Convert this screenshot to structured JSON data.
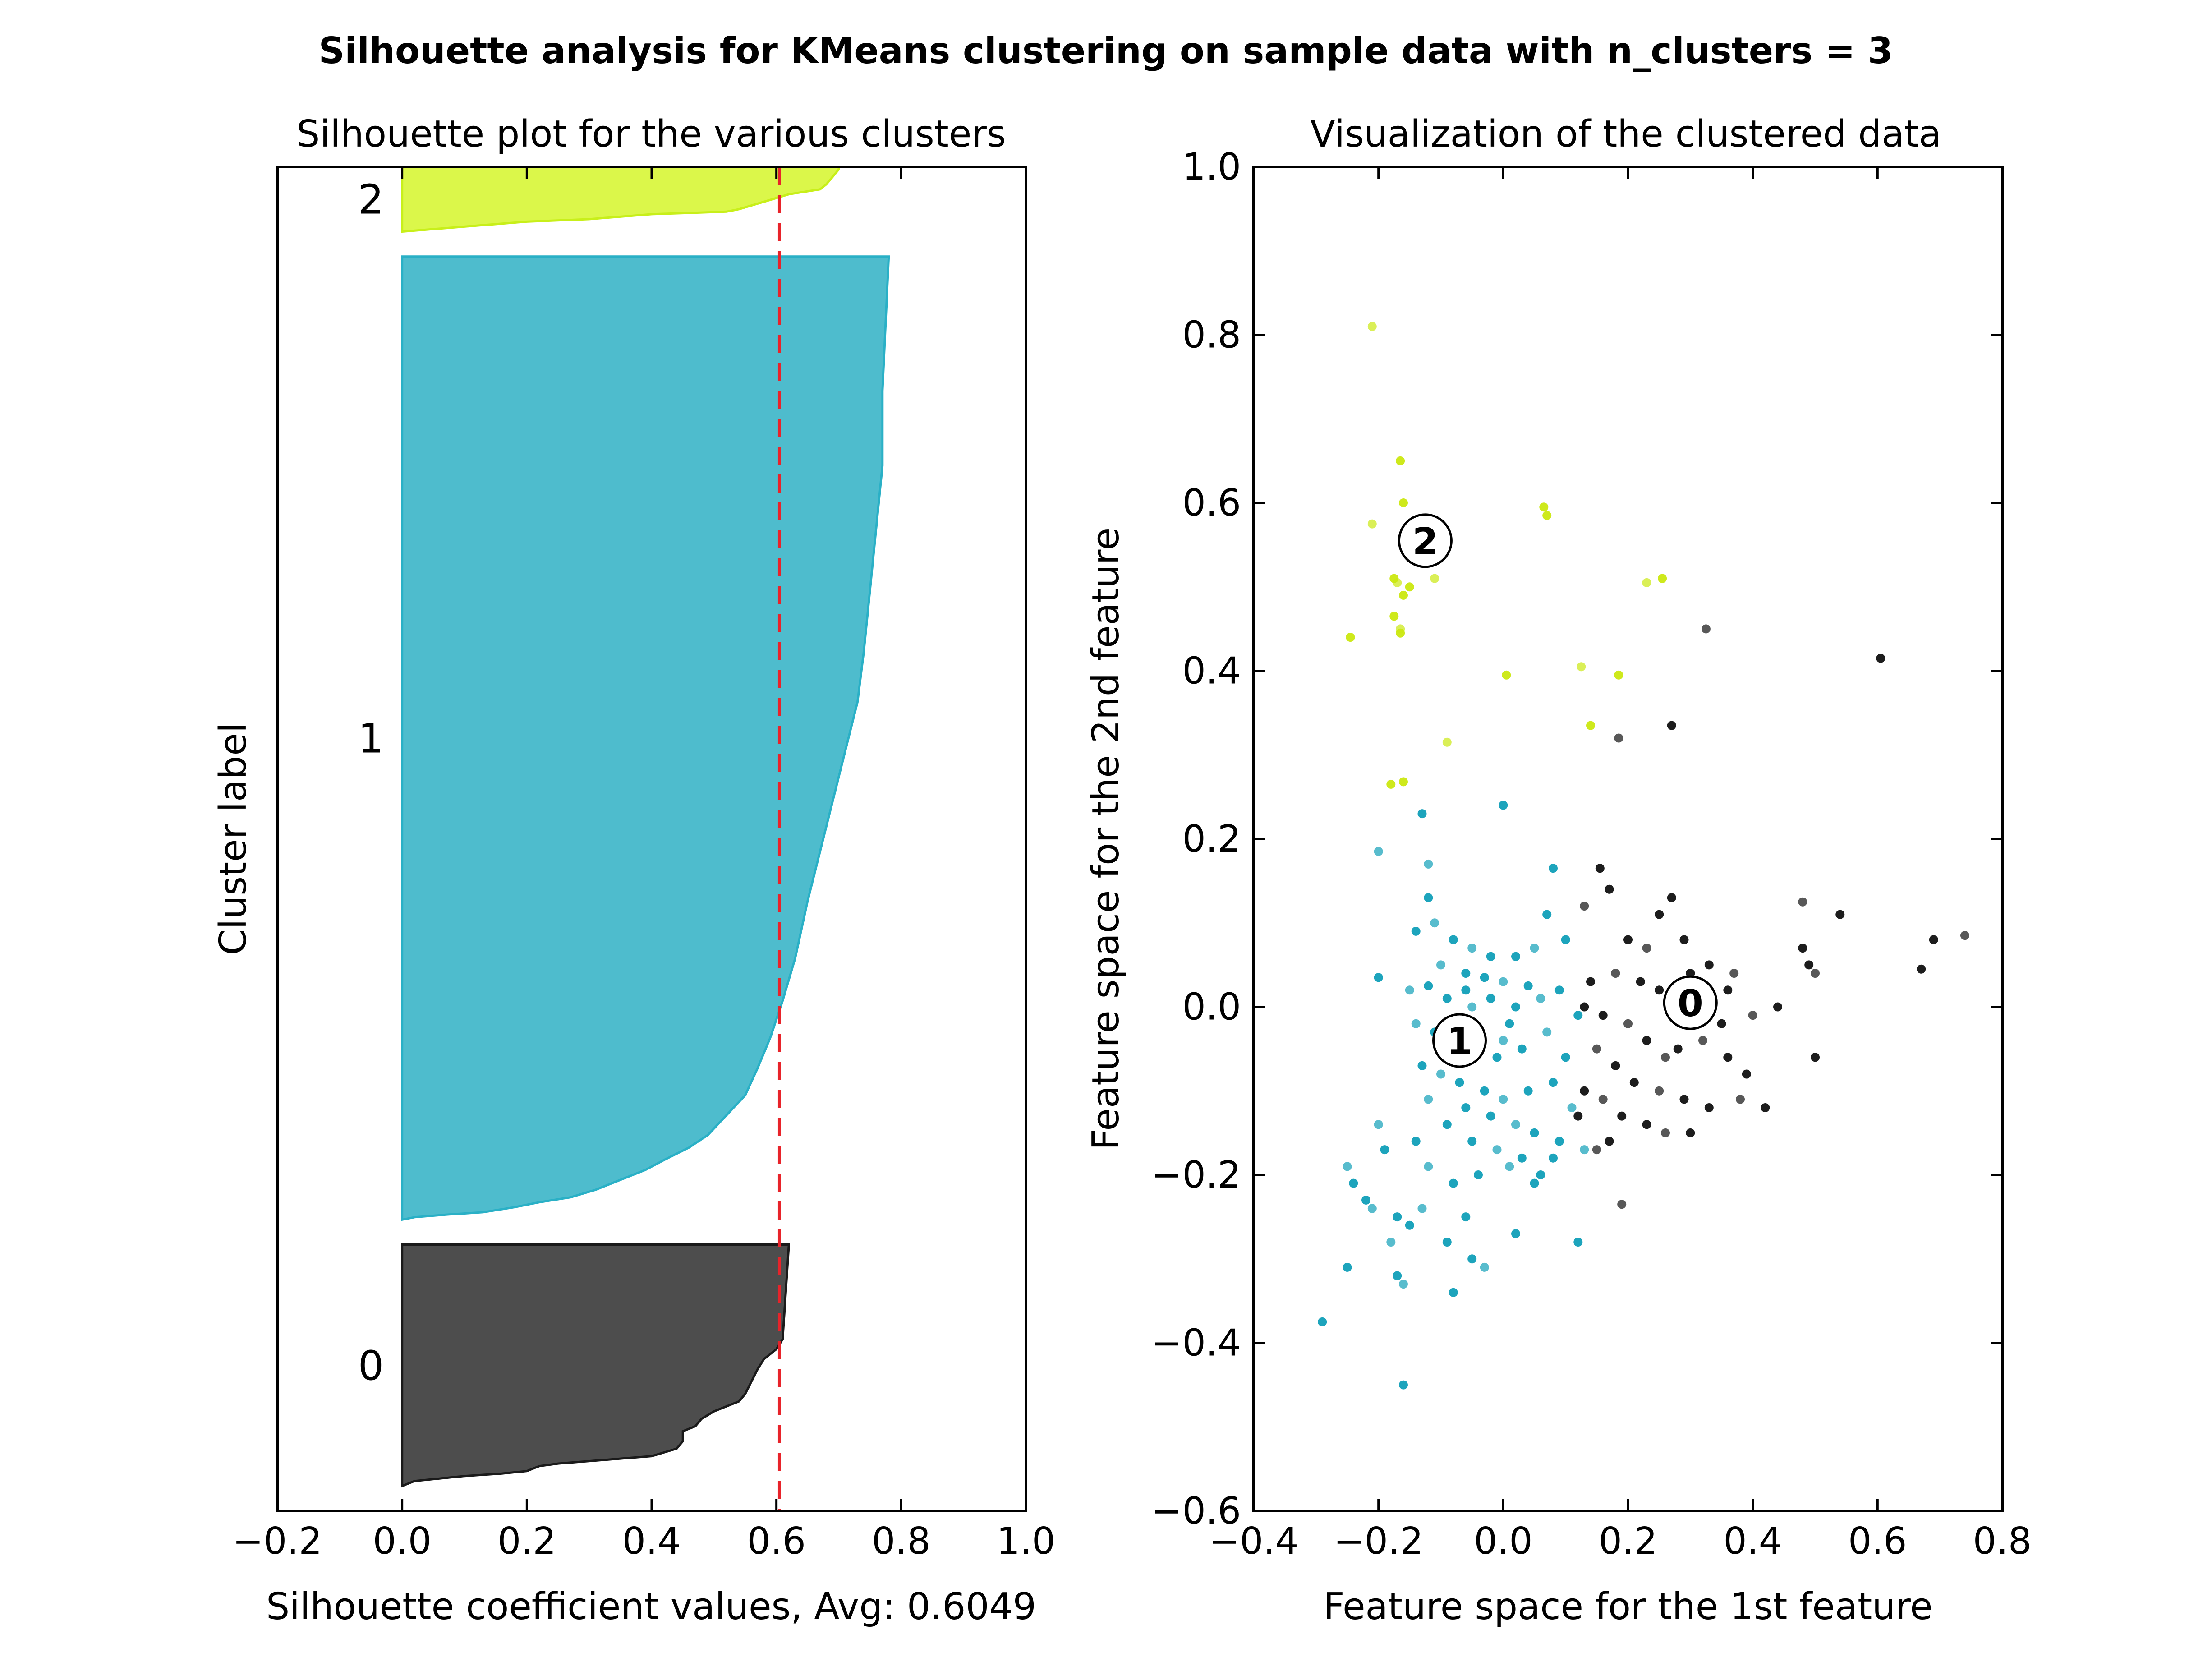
{
  "figure": {
    "title": "Silhouette analysis for KMeans clustering on sample data with n_clusters = 3"
  },
  "colors": {
    "cluster_0": "#4d4d4d",
    "cluster_0_edge": "#1a1a1a",
    "cluster_1": "#4ebccd",
    "cluster_1_edge": "#2ab0c6",
    "cluster_2": "#dbf74a",
    "cluster_2_edge": "#c8ef1a",
    "avg_line": "#e8232a",
    "pts_0": "#111111",
    "pts_1": "#119fb8",
    "pts_2": "#cbe810"
  },
  "chart_data": [
    {
      "type": "area",
      "title": "Silhouette plot for the various clusters",
      "xlabel": "Silhouette coefficient values, Avg: 0.6049",
      "ylabel": "Cluster label",
      "xlim": [
        -0.2,
        1.0
      ],
      "ylim": [
        0,
        540
      ],
      "xticks": [
        "−0.2",
        "0.0",
        "0.2",
        "0.4",
        "0.6",
        "0.8",
        "1.0"
      ],
      "xtick_values": [
        -0.2,
        0.0,
        0.2,
        0.4,
        0.6,
        0.8,
        1.0
      ],
      "average_silhouette": 0.6049,
      "grid": false,
      "clusters": [
        {
          "label": "0",
          "y_range": [
            10,
            107
          ],
          "profile": [
            [
              0.0,
              10
            ],
            [
              0.01,
              11
            ],
            [
              0.02,
              12
            ],
            [
              0.06,
              13
            ],
            [
              0.1,
              14
            ],
            [
              0.16,
              15
            ],
            [
              0.2,
              16
            ],
            [
              0.22,
              18
            ],
            [
              0.25,
              19
            ],
            [
              0.3,
              20
            ],
            [
              0.35,
              21
            ],
            [
              0.4,
              22
            ],
            [
              0.44,
              25
            ],
            [
              0.45,
              28
            ],
            [
              0.45,
              32
            ],
            [
              0.47,
              34
            ],
            [
              0.48,
              37
            ],
            [
              0.5,
              40
            ],
            [
              0.52,
              42
            ],
            [
              0.54,
              44
            ],
            [
              0.55,
              47
            ],
            [
              0.56,
              52
            ],
            [
              0.57,
              57
            ],
            [
              0.58,
              61
            ],
            [
              0.6,
              65
            ],
            [
              0.61,
              69
            ],
            [
              0.62,
              107
            ]
          ]
        },
        {
          "label": "1",
          "y_range": [
            117,
            504
          ],
          "profile": [
            [
              0.0,
              117
            ],
            [
              0.02,
              118
            ],
            [
              0.07,
              119
            ],
            [
              0.13,
              120
            ],
            [
              0.18,
              122
            ],
            [
              0.22,
              124
            ],
            [
              0.27,
              126
            ],
            [
              0.31,
              129
            ],
            [
              0.35,
              133
            ],
            [
              0.39,
              137
            ],
            [
              0.42,
              141
            ],
            [
              0.46,
              146
            ],
            [
              0.49,
              151
            ],
            [
              0.52,
              159
            ],
            [
              0.55,
              167
            ],
            [
              0.57,
              178
            ],
            [
              0.59,
              190
            ],
            [
              0.61,
              205
            ],
            [
              0.63,
              222
            ],
            [
              0.65,
              245
            ],
            [
              0.67,
              265
            ],
            [
              0.69,
              285
            ],
            [
              0.71,
              305
            ],
            [
              0.73,
              325
            ],
            [
              0.74,
              345
            ],
            [
              0.75,
              370
            ],
            [
              0.76,
              395
            ],
            [
              0.77,
              420
            ],
            [
              0.77,
              450
            ],
            [
              0.78,
              504
            ]
          ]
        },
        {
          "label": "2",
          "y_range": [
            514,
            540
          ],
          "profile": [
            [
              0.0,
              514
            ],
            [
              0.05,
              515
            ],
            [
              0.1,
              516
            ],
            [
              0.2,
              518
            ],
            [
              0.3,
              519
            ],
            [
              0.4,
              521
            ],
            [
              0.52,
              522
            ],
            [
              0.54,
              523
            ],
            [
              0.58,
              526
            ],
            [
              0.62,
              529
            ],
            [
              0.67,
              531
            ],
            [
              0.68,
              533
            ],
            [
              0.69,
              536
            ],
            [
              0.7,
              539
            ],
            [
              0.7,
              540
            ]
          ]
        }
      ]
    },
    {
      "type": "scatter",
      "title": "Visualization of the clustered data",
      "xlabel": "Feature space for the 1st feature",
      "ylabel": "Feature space for the 2nd feature",
      "xlim": [
        -0.4,
        0.8
      ],
      "ylim": [
        -0.6,
        1.0
      ],
      "xticks": [
        "−0.4",
        "−0.2",
        "0.0",
        "0.2",
        "0.4",
        "0.6",
        "0.8"
      ],
      "xtick_values": [
        -0.4,
        -0.2,
        0.0,
        0.2,
        0.4,
        0.6,
        0.8
      ],
      "yticks": [
        "−0.6",
        "−0.4",
        "−0.2",
        "0.0",
        "0.2",
        "0.4",
        "0.6",
        "0.8",
        "1.0"
      ],
      "ytick_values": [
        -0.6,
        -0.4,
        -0.2,
        0.0,
        0.2,
        0.4,
        0.6,
        0.8,
        1.0
      ],
      "grid": false,
      "centers": [
        {
          "label": "0",
          "x": 0.3,
          "y": 0.005
        },
        {
          "label": "1",
          "x": -0.07,
          "y": -0.04
        },
        {
          "label": "2",
          "x": -0.125,
          "y": 0.555
        }
      ],
      "series": [
        {
          "cluster": "2",
          "points": [
            [
              -0.21,
              0.81
            ],
            [
              -0.165,
              0.65
            ],
            [
              -0.16,
              0.6
            ],
            [
              -0.21,
              0.575
            ],
            [
              -0.15,
              0.5
            ],
            [
              -0.175,
              0.51
            ],
            [
              -0.17,
              0.505
            ],
            [
              -0.16,
              0.49
            ],
            [
              -0.175,
              0.465
            ],
            [
              -0.165,
              0.45
            ],
            [
              -0.245,
              0.44
            ],
            [
              -0.165,
              0.445
            ],
            [
              -0.11,
              0.51
            ],
            [
              0.065,
              0.595
            ],
            [
              0.07,
              0.585
            ],
            [
              0.23,
              0.505
            ],
            [
              0.255,
              0.51
            ],
            [
              0.005,
              0.395
            ],
            [
              0.125,
              0.405
            ],
            [
              0.185,
              0.395
            ],
            [
              0.14,
              0.335
            ],
            [
              -0.09,
              0.315
            ],
            [
              -0.18,
              0.265
            ],
            [
              -0.16,
              0.268
            ]
          ]
        },
        {
          "cluster": "1",
          "points": [
            [
              -0.2,
              0.185
            ],
            [
              -0.13,
              0.23
            ],
            [
              0.0,
              0.24
            ],
            [
              -0.12,
              0.17
            ],
            [
              0.08,
              0.165
            ],
            [
              -0.12,
              0.13
            ],
            [
              -0.11,
              0.1
            ],
            [
              -0.14,
              0.09
            ],
            [
              -0.08,
              0.08
            ],
            [
              -0.05,
              0.07
            ],
            [
              -0.02,
              0.06
            ],
            [
              0.02,
              0.06
            ],
            [
              0.05,
              0.07
            ],
            [
              0.07,
              0.11
            ],
            [
              0.1,
              0.08
            ],
            [
              -0.1,
              0.05
            ],
            [
              -0.06,
              0.04
            ],
            [
              -0.03,
              0.035
            ],
            [
              0.0,
              0.03
            ],
            [
              0.04,
              0.025
            ],
            [
              -0.2,
              0.035
            ],
            [
              -0.15,
              0.02
            ],
            [
              -0.12,
              0.025
            ],
            [
              -0.09,
              0.01
            ],
            [
              -0.05,
              0.0
            ],
            [
              -0.02,
              0.01
            ],
            [
              0.02,
              0.0
            ],
            [
              0.06,
              0.01
            ],
            [
              0.09,
              0.02
            ],
            [
              0.12,
              -0.01
            ],
            [
              -0.14,
              -0.02
            ],
            [
              -0.11,
              -0.03
            ],
            [
              -0.08,
              -0.02
            ],
            [
              -0.04,
              -0.05
            ],
            [
              -0.01,
              -0.06
            ],
            [
              0.03,
              -0.05
            ],
            [
              0.07,
              -0.03
            ],
            [
              0.1,
              -0.06
            ],
            [
              -0.13,
              -0.07
            ],
            [
              -0.1,
              -0.08
            ],
            [
              -0.07,
              -0.09
            ],
            [
              -0.03,
              -0.1
            ],
            [
              0.0,
              -0.11
            ],
            [
              0.04,
              -0.1
            ],
            [
              0.08,
              -0.09
            ],
            [
              0.11,
              -0.12
            ],
            [
              -0.06,
              -0.12
            ],
            [
              -0.02,
              -0.13
            ],
            [
              0.02,
              -0.14
            ],
            [
              0.05,
              -0.15
            ],
            [
              0.09,
              -0.16
            ],
            [
              -0.12,
              -0.11
            ],
            [
              -0.09,
              -0.14
            ],
            [
              -0.05,
              -0.16
            ],
            [
              -0.01,
              -0.17
            ],
            [
              0.03,
              -0.18
            ],
            [
              0.06,
              -0.2
            ],
            [
              -0.2,
              -0.14
            ],
            [
              -0.19,
              -0.17
            ],
            [
              -0.14,
              -0.16
            ],
            [
              -0.12,
              -0.19
            ],
            [
              -0.08,
              -0.21
            ],
            [
              -0.04,
              -0.2
            ],
            [
              0.01,
              -0.19
            ],
            [
              0.05,
              -0.21
            ],
            [
              0.08,
              -0.18
            ],
            [
              -0.25,
              -0.19
            ],
            [
              -0.24,
              -0.21
            ],
            [
              -0.22,
              -0.23
            ],
            [
              -0.21,
              -0.24
            ],
            [
              -0.17,
              -0.25
            ],
            [
              -0.15,
              -0.26
            ],
            [
              -0.13,
              -0.24
            ],
            [
              -0.06,
              -0.25
            ],
            [
              0.02,
              -0.27
            ],
            [
              -0.18,
              -0.28
            ],
            [
              -0.09,
              -0.28
            ],
            [
              -0.05,
              -0.3
            ],
            [
              -0.03,
              -0.31
            ],
            [
              -0.25,
              -0.31
            ],
            [
              -0.17,
              -0.32
            ],
            [
              -0.16,
              -0.33
            ],
            [
              -0.08,
              -0.34
            ],
            [
              0.12,
              -0.28
            ],
            [
              0.13,
              -0.17
            ],
            [
              -0.29,
              -0.375
            ],
            [
              -0.16,
              -0.45
            ],
            [
              0.0,
              -0.04
            ],
            [
              -0.06,
              0.02
            ],
            [
              0.01,
              -0.02
            ]
          ]
        },
        {
          "cluster": "0",
          "points": [
            [
              0.325,
              0.45
            ],
            [
              0.605,
              0.415
            ],
            [
              0.27,
              0.335
            ],
            [
              0.185,
              0.32
            ],
            [
              0.155,
              0.165
            ],
            [
              0.17,
              0.14
            ],
            [
              0.13,
              0.12
            ],
            [
              0.27,
              0.13
            ],
            [
              0.25,
              0.11
            ],
            [
              0.48,
              0.125
            ],
            [
              0.54,
              0.11
            ],
            [
              0.2,
              0.08
            ],
            [
              0.23,
              0.07
            ],
            [
              0.29,
              0.08
            ],
            [
              0.33,
              0.05
            ],
            [
              0.37,
              0.04
            ],
            [
              0.48,
              0.07
            ],
            [
              0.69,
              0.08
            ],
            [
              0.74,
              0.085
            ],
            [
              0.67,
              0.045
            ],
            [
              0.14,
              0.03
            ],
            [
              0.18,
              0.04
            ],
            [
              0.22,
              0.03
            ],
            [
              0.25,
              0.02
            ],
            [
              0.27,
              0.0
            ],
            [
              0.31,
              0.01
            ],
            [
              0.35,
              -0.02
            ],
            [
              0.4,
              -0.01
            ],
            [
              0.44,
              0.0
            ],
            [
              0.49,
              0.05
            ],
            [
              0.5,
              0.04
            ],
            [
              0.13,
              0.0
            ],
            [
              0.16,
              -0.01
            ],
            [
              0.2,
              -0.02
            ],
            [
              0.23,
              -0.04
            ],
            [
              0.28,
              -0.05
            ],
            [
              0.32,
              -0.04
            ],
            [
              0.36,
              -0.06
            ],
            [
              0.39,
              -0.08
            ],
            [
              0.15,
              -0.05
            ],
            [
              0.18,
              -0.07
            ],
            [
              0.21,
              -0.09
            ],
            [
              0.25,
              -0.1
            ],
            [
              0.29,
              -0.11
            ],
            [
              0.33,
              -0.12
            ],
            [
              0.38,
              -0.11
            ],
            [
              0.42,
              -0.12
            ],
            [
              0.5,
              -0.06
            ],
            [
              0.16,
              -0.11
            ],
            [
              0.19,
              -0.13
            ],
            [
              0.23,
              -0.14
            ],
            [
              0.26,
              -0.15
            ],
            [
              0.3,
              -0.15
            ],
            [
              0.12,
              -0.13
            ],
            [
              0.15,
              -0.17
            ],
            [
              0.17,
              -0.16
            ],
            [
              0.13,
              -0.1
            ],
            [
              0.26,
              -0.06
            ],
            [
              0.3,
              0.04
            ],
            [
              0.36,
              0.02
            ],
            [
              0.19,
              -0.235
            ]
          ]
        }
      ]
    }
  ]
}
